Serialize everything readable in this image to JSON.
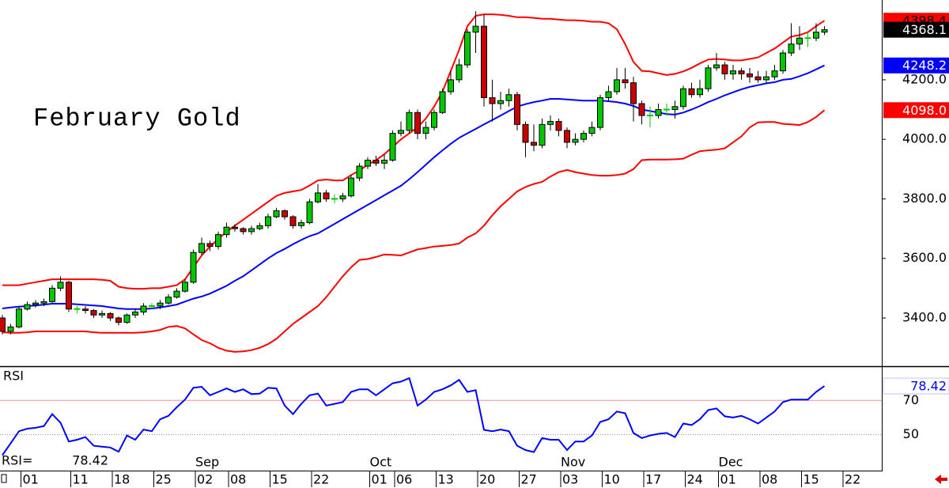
{
  "chart_data": [
    {
      "type": "candlestick",
      "title": "February Gold",
      "categories": [
        null,
        null,
        null,
        "01",
        null,
        null,
        null,
        null,
        null,
        "11",
        null,
        null,
        null,
        null,
        "18",
        null,
        null,
        null,
        null,
        "25",
        null,
        null,
        null,
        null,
        "02",
        null,
        null,
        null,
        "08",
        null,
        null,
        null,
        null,
        "15",
        null,
        null,
        null,
        null,
        "22",
        null,
        null,
        null,
        null,
        null,
        null,
        "01",
        null,
        null,
        "06",
        null,
        null,
        null,
        null,
        "13",
        null,
        null,
        null,
        null,
        "20",
        null,
        null,
        null,
        null,
        "27",
        null,
        null,
        null,
        null,
        "03",
        null,
        null,
        null,
        null,
        "10",
        null,
        null,
        null,
        null,
        "17",
        null,
        null,
        null,
        null,
        "24",
        null,
        null,
        null,
        "01",
        null,
        null,
        null,
        null,
        "08",
        null,
        null,
        null,
        null,
        "15",
        null,
        null,
        null,
        null,
        "22"
      ],
      "months": [
        {
          "label": "Sep",
          "category_index": 24
        },
        {
          "label": "Oct",
          "category_index": 45
        },
        {
          "label": "Nov",
          "category_index": 68
        },
        {
          "label": "Dec",
          "category_index": 87
        }
      ],
      "open": [
        3400,
        3355,
        3370,
        3430,
        3445,
        3450,
        3455,
        3500,
        3520,
        3430,
        3430,
        3425,
        3410,
        3415,
        3400,
        3385,
        3410,
        3420,
        3440,
        3440,
        3450,
        3470,
        3490,
        3520,
        3620,
        3650,
        3640,
        3680,
        3705,
        3700,
        3690,
        3700,
        3710,
        3740,
        3760,
        3740,
        3710,
        3720,
        3790,
        3820,
        3800,
        3800,
        3810,
        3870,
        3910,
        3930,
        3920,
        3930,
        4020,
        4030,
        4090,
        4020,
        4040,
        4090,
        4160,
        4200,
        4250,
        4360,
        4380,
        4140,
        4120,
        4130,
        4150,
        4050,
        3990,
        3980,
        4050,
        4060,
        4030,
        3990,
        4000,
        4020,
        4040,
        4140,
        4160,
        4200,
        4190,
        4120,
        4080,
        4080,
        4100,
        4100,
        4110,
        4170,
        4150,
        4170,
        4240,
        4250,
        4220,
        4230,
        4220,
        4210,
        4200,
        4210,
        4230,
        4290,
        4320,
        4340,
        4340,
        4360,
        null,
        null,
        null
      ],
      "high": [
        3410,
        3380,
        3440,
        3455,
        3460,
        3465,
        3510,
        3540,
        3525,
        3440,
        3440,
        3430,
        3425,
        3420,
        3405,
        3415,
        3430,
        3450,
        3450,
        3460,
        3480,
        3500,
        3530,
        3630,
        3670,
        3660,
        3690,
        3720,
        3715,
        3705,
        3710,
        3720,
        3750,
        3770,
        3765,
        3745,
        3730,
        3800,
        3850,
        3830,
        3815,
        3820,
        3880,
        3920,
        3940,
        3945,
        3950,
        4030,
        4060,
        4100,
        4100,
        4060,
        4100,
        4170,
        4230,
        4270,
        4370,
        4430,
        4420,
        4200,
        4160,
        4170,
        4160,
        4060,
        4050,
        4070,
        4080,
        4070,
        4040,
        4020,
        4030,
        4060,
        4150,
        4180,
        4240,
        4240,
        4210,
        4130,
        4110,
        4120,
        4120,
        4130,
        4180,
        4190,
        4200,
        4250,
        4290,
        4260,
        4250,
        4240,
        4240,
        4230,
        4230,
        4250,
        4300,
        4390,
        4380,
        4360,
        4390,
        4380,
        null,
        null,
        null
      ],
      "low": [
        3345,
        3345,
        3365,
        3425,
        3435,
        3440,
        3450,
        3490,
        3420,
        3415,
        3415,
        3400,
        3400,
        3390,
        3375,
        3380,
        3400,
        3410,
        3430,
        3430,
        3445,
        3465,
        3485,
        3515,
        3610,
        3625,
        3630,
        3670,
        3690,
        3680,
        3680,
        3695,
        3700,
        3735,
        3730,
        3700,
        3700,
        3715,
        3785,
        3790,
        3785,
        3790,
        3805,
        3860,
        3900,
        3910,
        3900,
        3925,
        4010,
        4020,
        4000,
        4000,
        4030,
        4085,
        4150,
        4190,
        4240,
        4290,
        4110,
        4060,
        4100,
        4110,
        4030,
        3940,
        3960,
        3970,
        4030,
        4010,
        3970,
        3980,
        3990,
        4010,
        4030,
        4130,
        4150,
        4170,
        4060,
        4050,
        4040,
        4070,
        4080,
        4070,
        4100,
        4140,
        4140,
        4160,
        4230,
        4200,
        4200,
        4200,
        4190,
        4190,
        4190,
        4200,
        4220,
        4280,
        4300,
        4310,
        4330,
        4350,
        null,
        null,
        null
      ],
      "close": [
        3355,
        3370,
        3430,
        3445,
        3450,
        3455,
        3500,
        3520,
        3430,
        3430,
        3425,
        3410,
        3415,
        3400,
        3385,
        3410,
        3420,
        3440,
        3440,
        3450,
        3470,
        3490,
        3520,
        3620,
        3650,
        3640,
        3680,
        3705,
        3700,
        3690,
        3700,
        3710,
        3740,
        3760,
        3740,
        3710,
        3720,
        3790,
        3820,
        3800,
        3800,
        3810,
        3870,
        3910,
        3930,
        3920,
        3930,
        4020,
        4030,
        4090,
        4020,
        4040,
        4090,
        4160,
        4200,
        4250,
        4360,
        4380,
        4140,
        4120,
        4130,
        4150,
        4050,
        3990,
        3980,
        4050,
        4060,
        4030,
        3990,
        4000,
        4020,
        4040,
        4140,
        4160,
        4200,
        4190,
        4120,
        4080,
        4080,
        4100,
        4100,
        4110,
        4170,
        4150,
        4170,
        4240,
        4250,
        4220,
        4230,
        4220,
        4210,
        4200,
        4210,
        4230,
        4290,
        4320,
        4340,
        4340,
        4360,
        4368.1,
        null,
        null,
        null
      ],
      "up_color": "#00c800",
      "down_color": "#c80000",
      "close_label_color": "#000000",
      "series": [
        {
          "color": "#ff0000",
          "label_text": "#000000",
          "values": [
            3510,
            3510,
            3510,
            3515,
            3520,
            3525,
            3530,
            3530,
            3530,
            3530,
            3530,
            3530,
            3528,
            3525,
            3505,
            3500,
            3498,
            3498,
            3500,
            3500,
            3505,
            3510,
            3530,
            3570,
            3610,
            3640,
            3665,
            3690,
            3710,
            3730,
            3750,
            3770,
            3790,
            3810,
            3820,
            3825,
            3830,
            3845,
            3862,
            3865,
            3862,
            3862,
            3880,
            3895,
            3915,
            3930,
            3950,
            3975,
            4000,
            4020,
            4040,
            4070,
            4110,
            4160,
            4230,
            4300,
            4380,
            4415,
            4420,
            4420,
            4418,
            4415,
            4410,
            4410,
            4408,
            4405,
            4405,
            4402,
            4400,
            4400,
            4398,
            4395,
            4395,
            4390,
            4370,
            4320,
            4260,
            4230,
            4228,
            4222,
            4216,
            4220,
            4228,
            4240,
            4255,
            4268,
            4270,
            4268,
            4265,
            4265,
            4270,
            4275,
            4290,
            4305,
            4325,
            4345,
            4350,
            4360,
            4380,
            4398.4,
            null,
            null,
            null
          ]
        },
        {
          "color": "#0000ff",
          "label_text": "#ffffff",
          "values": [
            3432,
            3435,
            3438,
            3440,
            3442,
            3445,
            3448,
            3448,
            3448,
            3446,
            3444,
            3442,
            3440,
            3436,
            3432,
            3430,
            3430,
            3430,
            3432,
            3435,
            3440,
            3445,
            3455,
            3465,
            3472,
            3482,
            3495,
            3508,
            3525,
            3540,
            3560,
            3580,
            3600,
            3618,
            3632,
            3648,
            3662,
            3675,
            3684,
            3700,
            3716,
            3732,
            3748,
            3764,
            3780,
            3796,
            3812,
            3828,
            3844,
            3866,
            3890,
            3915,
            3940,
            3963,
            3985,
            4005,
            4020,
            4035,
            4050,
            4065,
            4080,
            4095,
            4110,
            4118,
            4125,
            4130,
            4136,
            4136,
            4134,
            4132,
            4130,
            4130,
            4130,
            4128,
            4125,
            4120,
            4112,
            4100,
            4095,
            4090,
            4085,
            4083,
            4090,
            4100,
            4112,
            4125,
            4136,
            4148,
            4158,
            4168,
            4176,
            4182,
            4188,
            4192,
            4200,
            4203,
            4212,
            4222,
            4235,
            4248.2,
            null,
            null,
            null
          ]
        },
        {
          "color": "#ff0000",
          "label_text": "#ffffff",
          "last_label": "4098.0",
          "values": [
            3352,
            3350,
            3350,
            3352,
            3355,
            3355,
            3355,
            3355,
            3355,
            3355,
            3355,
            3352,
            3350,
            3350,
            3350,
            3350,
            3350,
            3352,
            3355,
            3360,
            3370,
            3373,
            3365,
            3345,
            3326,
            3315,
            3300,
            3290,
            3286,
            3288,
            3292,
            3300,
            3312,
            3330,
            3355,
            3380,
            3400,
            3420,
            3440,
            3470,
            3505,
            3540,
            3570,
            3595,
            3598,
            3605,
            3613,
            3612,
            3610,
            3620,
            3630,
            3635,
            3640,
            3642,
            3645,
            3650,
            3670,
            3684,
            3710,
            3745,
            3775,
            3800,
            3825,
            3840,
            3850,
            3857,
            3875,
            3890,
            3897,
            3890,
            3885,
            3880,
            3878,
            3878,
            3880,
            3885,
            3900,
            3930,
            3932,
            3932,
            3932,
            3933,
            3935,
            3948,
            3960,
            3963,
            3965,
            3970,
            3990,
            4010,
            4040,
            4057,
            4058,
            4058,
            4052,
            4050,
            4048,
            4058,
            4075,
            4098,
            null,
            null,
            null
          ]
        }
      ],
      "ylim": [
        3238,
        4468
      ],
      "yticks": [
        {
          "value": 3400,
          "label": "3400.0"
        },
        {
          "value": 3600,
          "label": "3600.0"
        },
        {
          "value": 3800,
          "label": "3800.0"
        },
        {
          "value": 4000,
          "label": "4000.0"
        },
        {
          "value": 4200,
          "label": "4200.0"
        }
      ]
    },
    {
      "type": "line",
      "title": "RSI",
      "value_prefix": "RSI=",
      "color": "#0000ff",
      "values": [
        38,
        45,
        52,
        53.5,
        54,
        55,
        62,
        57,
        46,
        47,
        48.6,
        43.5,
        43,
        42.5,
        40,
        49.5,
        47,
        53,
        52,
        59,
        61,
        66,
        70.5,
        77.4,
        78,
        73,
        75,
        77,
        75,
        76.5,
        73.7,
        74,
        77.4,
        77,
        67,
        62,
        68,
        73,
        74,
        67,
        68,
        69,
        75,
        76.5,
        76.5,
        73,
        76.5,
        80,
        81,
        83,
        67,
        70.5,
        75,
        76.5,
        78.8,
        82,
        75,
        76,
        52.8,
        52,
        53,
        52,
        43.5,
        41,
        39.8,
        48,
        47,
        47,
        41,
        46,
        46,
        49.5,
        57.4,
        59,
        63.5,
        62.5,
        51,
        48,
        49.5,
        50.5,
        51,
        48.6,
        56.5,
        55.6,
        59,
        64.4,
        65.3,
        60.7,
        60,
        61,
        59,
        56.5,
        60,
        63.5,
        69,
        70.5,
        70.5,
        70.5,
        75,
        78.42,
        null,
        null,
        null
      ],
      "ylim": [
        29,
        90
      ],
      "yticks": [
        50,
        70
      ],
      "grid_colors": [
        "#909090",
        "#ff9090"
      ]
    }
  ]
}
